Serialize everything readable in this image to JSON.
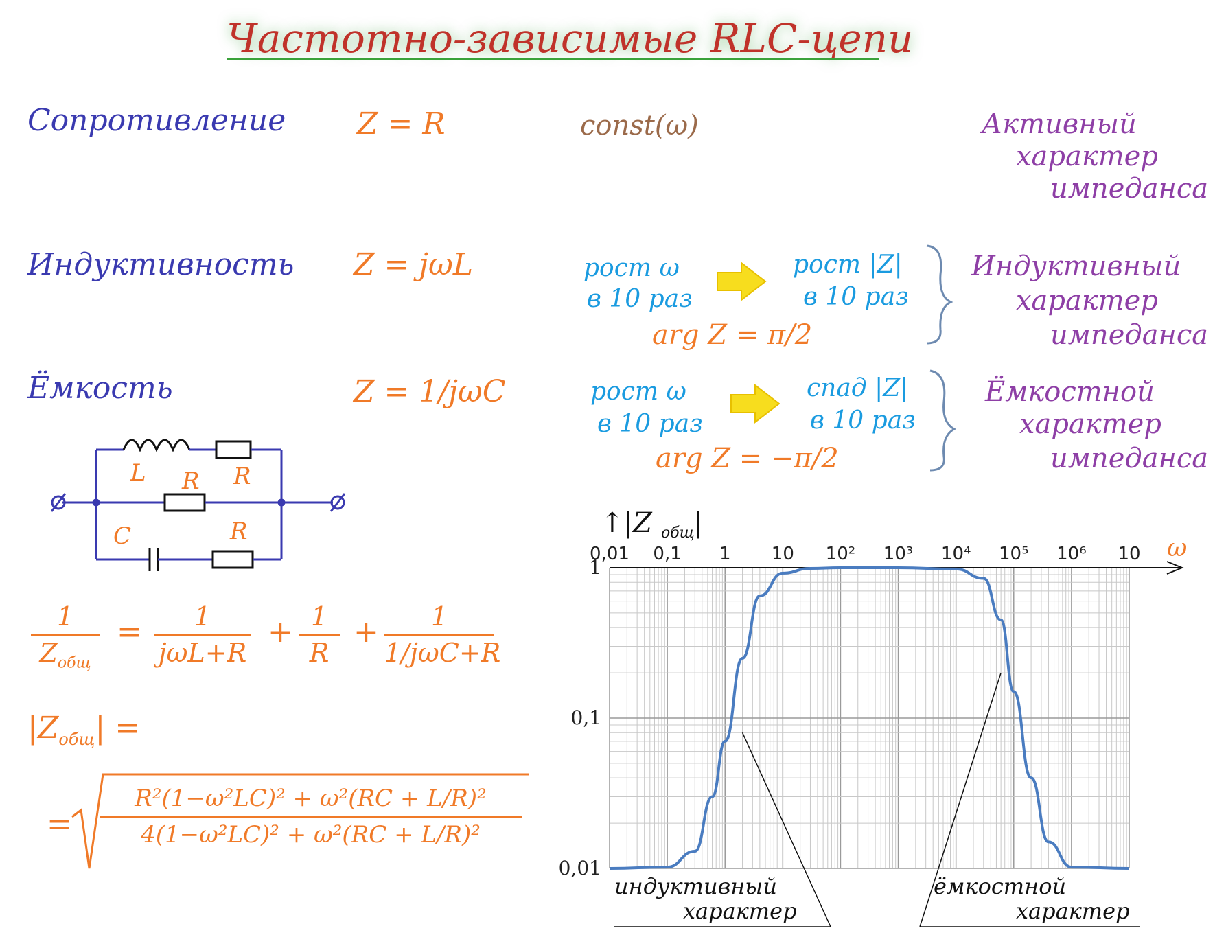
{
  "title": "Частотно-зависимые RLC-цепи",
  "rows": [
    {
      "name": "Сопротивление",
      "formula": "Z = R",
      "note": "const(ω)",
      "character": [
        "Активный",
        "характер",
        "импеданса"
      ]
    },
    {
      "name": "Индуктивность",
      "formula": "Z = jωL",
      "note_left": [
        "рост ω",
        "в 10 раз"
      ],
      "note_right": [
        "рост |Z|",
        "в 10 раз"
      ],
      "arg": "arg Z = π/2",
      "character": [
        "Индуктивный",
        "характер",
        "импеданса"
      ]
    },
    {
      "name": "Ёмкость",
      "formula": "Z = 1/jωC",
      "note_left": [
        "рост ω",
        "в 10 раз"
      ],
      "note_right": [
        "спад |Z|",
        "в 10 раз"
      ],
      "arg": "arg Z = −π/2",
      "character": [
        "Ёмкостной",
        "характер",
        "импеданса"
      ]
    }
  ],
  "circuit": {
    "labels": [
      "L",
      "R",
      "R",
      "C",
      "R"
    ]
  },
  "equation1": {
    "lhs_num": "1",
    "lhs_den": "Z",
    "lhs_sub": "общ",
    "eq": "=",
    "t1_num": "1",
    "t1_den": "jωL+R",
    "plus": "+",
    "t2_num": "1",
    "t2_den": "R",
    "t3_num": "1",
    "t3_den": "1/jωC+R"
  },
  "equation2": {
    "lhs": "|Z",
    "lhs_sub": "общ",
    "lhs_end": "| =",
    "eq": "=",
    "num": "R²(1−ω²LC)² + ω²(RC + L/R)²",
    "den": "4(1−ω²LC)² + ω²(RC + L/R)²"
  },
  "chart_data": {
    "type": "line",
    "ylabel": "↑|Z",
    "ylabel_sub": "общ",
    "ylabel_end": "|",
    "xlabel": "ω",
    "x_scale": "log",
    "y_scale": "log",
    "x_tick_labels": [
      "0,01",
      "0,1",
      "1",
      "10",
      "10²",
      "10³",
      "10⁴",
      "10⁵",
      "10⁶",
      "10"
    ],
    "y_tick_labels": [
      "1",
      "0,1",
      "0,01"
    ],
    "xlim": [
      0.01,
      10000000
    ],
    "ylim": [
      0.01,
      1
    ],
    "series": [
      {
        "name": "|Z общ|",
        "color": "#4a7cc0",
        "x": [
          0.01,
          0.1,
          0.3,
          0.6,
          1,
          2,
          4,
          10,
          30,
          100,
          1000,
          10000,
          30000,
          60000,
          100000,
          200000,
          400000,
          1000000,
          10000000
        ],
        "y": [
          0.01,
          0.0102,
          0.013,
          0.03,
          0.07,
          0.25,
          0.65,
          0.92,
          0.99,
          1.0,
          1.0,
          0.98,
          0.85,
          0.45,
          0.15,
          0.04,
          0.015,
          0.0102,
          0.01
        ]
      }
    ],
    "annotations": [
      {
        "text": "индуктивный",
        "line2": "характер"
      },
      {
        "text": "ёмкостной",
        "line2": "характер"
      }
    ]
  }
}
